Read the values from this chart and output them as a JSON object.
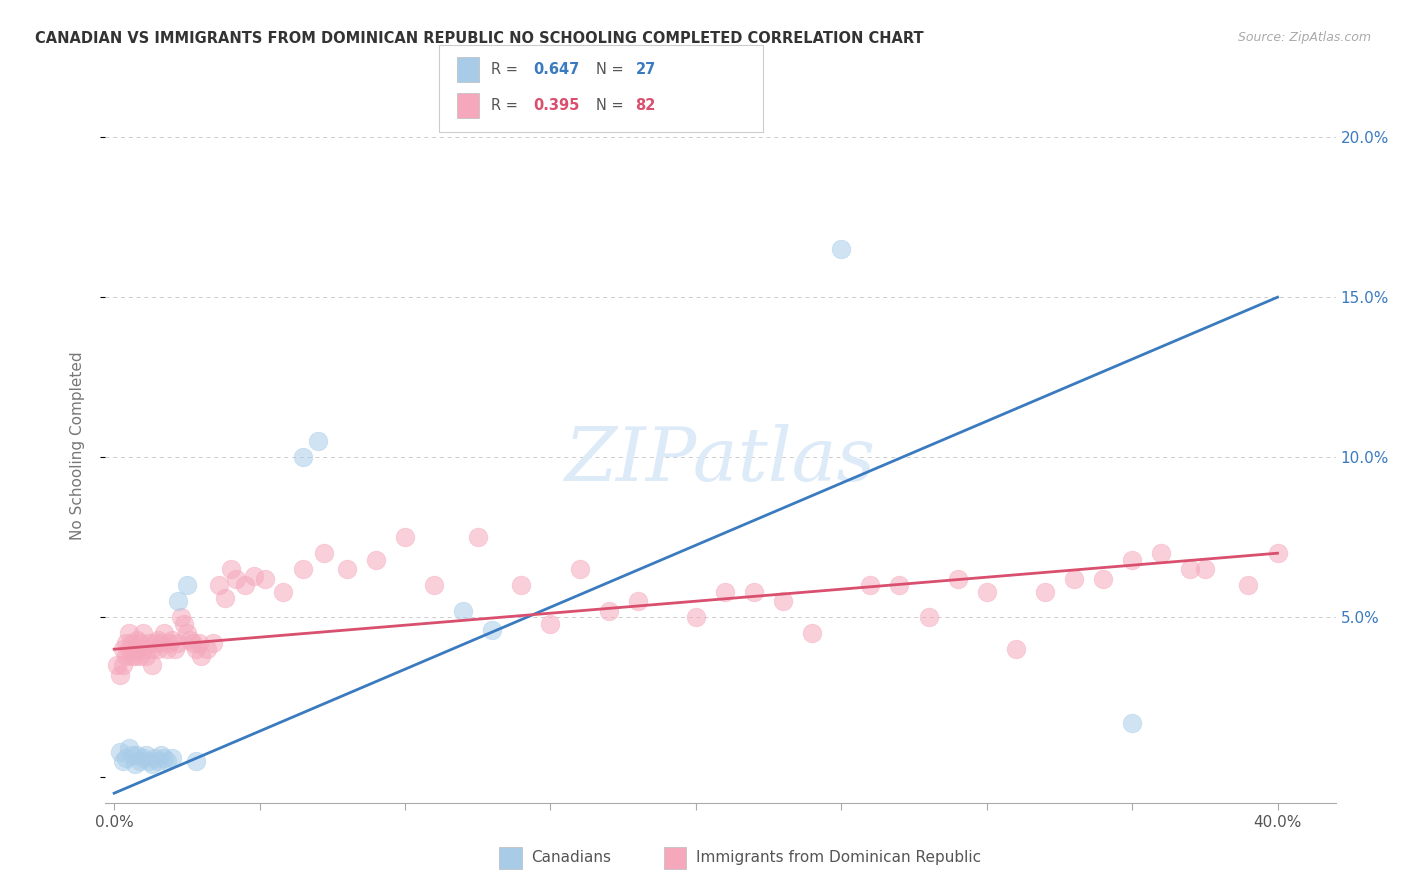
{
  "title": "CANADIAN VS IMMIGRANTS FROM DOMINICAN REPUBLIC NO SCHOOLING COMPLETED CORRELATION CHART",
  "source": "Source: ZipAtlas.com",
  "ylabel": "No Schooling Completed",
  "canadians_R": "0.647",
  "canadians_N": "27",
  "dominican_R": "0.395",
  "dominican_N": "82",
  "blue_scatter_color": "#a8cce8",
  "blue_line_color": "#3a7abf",
  "pink_scatter_color": "#f5a8bc",
  "pink_line_color": "#d94f6e",
  "watermark_color": "#ddeaf8",
  "grid_color": "#cccccc",
  "title_color": "#333333",
  "label_color": "#777777",
  "right_tick_color": "#3a7abf",
  "blue_R_color": "#3a7abf",
  "pink_R_color": "#d94f6e",
  "legend_text_color": "#555555",
  "canadians_x": [
    0.002,
    0.003,
    0.004,
    0.005,
    0.006,
    0.007,
    0.008,
    0.009,
    0.01,
    0.011,
    0.012,
    0.013,
    0.014,
    0.015,
    0.016,
    0.017,
    0.018,
    0.02,
    0.022,
    0.025,
    0.028,
    0.065,
    0.07,
    0.12,
    0.13,
    0.25,
    0.35
  ],
  "canadians_y": [
    0.008,
    0.005,
    0.006,
    0.009,
    0.007,
    0.004,
    0.007,
    0.005,
    0.006,
    0.007,
    0.005,
    0.004,
    0.006,
    0.005,
    0.007,
    0.006,
    0.005,
    0.006,
    0.055,
    0.06,
    0.005,
    0.1,
    0.105,
    0.052,
    0.046,
    0.165,
    0.017
  ],
  "dominican_x": [
    0.001,
    0.002,
    0.003,
    0.003,
    0.004,
    0.004,
    0.005,
    0.005,
    0.006,
    0.006,
    0.007,
    0.007,
    0.008,
    0.008,
    0.009,
    0.009,
    0.01,
    0.01,
    0.011,
    0.012,
    0.013,
    0.013,
    0.014,
    0.015,
    0.015,
    0.016,
    0.017,
    0.018,
    0.019,
    0.02,
    0.021,
    0.022,
    0.023,
    0.024,
    0.025,
    0.026,
    0.027,
    0.028,
    0.029,
    0.03,
    0.032,
    0.034,
    0.036,
    0.038,
    0.04,
    0.042,
    0.045,
    0.048,
    0.052,
    0.058,
    0.065,
    0.072,
    0.08,
    0.09,
    0.1,
    0.11,
    0.125,
    0.14,
    0.16,
    0.18,
    0.2,
    0.22,
    0.24,
    0.26,
    0.28,
    0.3,
    0.31,
    0.32,
    0.34,
    0.36,
    0.375,
    0.39,
    0.15,
    0.17,
    0.21,
    0.23,
    0.27,
    0.29,
    0.33,
    0.35,
    0.37,
    0.4
  ],
  "dominican_y": [
    0.035,
    0.032,
    0.04,
    0.035,
    0.038,
    0.042,
    0.04,
    0.045,
    0.038,
    0.042,
    0.04,
    0.038,
    0.04,
    0.043,
    0.038,
    0.042,
    0.04,
    0.045,
    0.038,
    0.042,
    0.04,
    0.035,
    0.042,
    0.04,
    0.043,
    0.042,
    0.045,
    0.04,
    0.042,
    0.043,
    0.04,
    0.042,
    0.05,
    0.048,
    0.045,
    0.043,
    0.042,
    0.04,
    0.042,
    0.038,
    0.04,
    0.042,
    0.06,
    0.056,
    0.065,
    0.062,
    0.06,
    0.063,
    0.062,
    0.058,
    0.065,
    0.07,
    0.065,
    0.068,
    0.075,
    0.06,
    0.075,
    0.06,
    0.065,
    0.055,
    0.05,
    0.058,
    0.045,
    0.06,
    0.05,
    0.058,
    0.04,
    0.058,
    0.062,
    0.07,
    0.065,
    0.06,
    0.048,
    0.052,
    0.058,
    0.055,
    0.06,
    0.062,
    0.062,
    0.068,
    0.065,
    0.07
  ],
  "blue_line_x0": 0.0,
  "blue_line_y0": -0.005,
  "blue_line_x1": 0.4,
  "blue_line_y1": 0.15,
  "pink_line_x0": 0.0,
  "pink_line_y0": 0.04,
  "pink_line_x1": 0.4,
  "pink_line_y1": 0.07,
  "xlim": [
    -0.003,
    0.42
  ],
  "ylim": [
    -0.008,
    0.215
  ],
  "xtick_positions": [
    0.0,
    0.05,
    0.1,
    0.15,
    0.2,
    0.25,
    0.3,
    0.35,
    0.4
  ],
  "ytick_positions": [
    0.0,
    0.05,
    0.1,
    0.15,
    0.2
  ],
  "ytick_labels": [
    "",
    "5.0%",
    "10.0%",
    "15.0%",
    "20.0%"
  ]
}
